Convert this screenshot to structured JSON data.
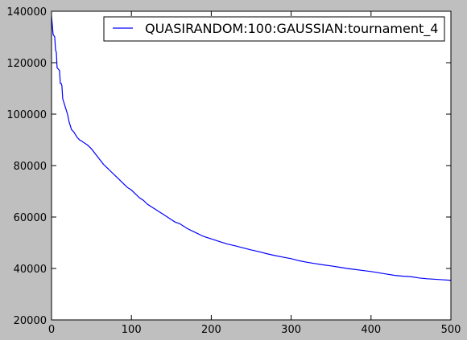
{
  "chart_data": {
    "type": "line",
    "title": "",
    "xlabel": "",
    "ylabel": "",
    "xlim": [
      0,
      500
    ],
    "ylim": [
      20000,
      140000
    ],
    "xticks": [
      0,
      100,
      200,
      300,
      400,
      500
    ],
    "yticks": [
      20000,
      40000,
      60000,
      80000,
      100000,
      120000,
      140000
    ],
    "grid": false,
    "legend_position": "top-right",
    "colors": {
      "figure_background": "#bfbfbf",
      "plot_background": "#ffffff",
      "series_line": "#0000ff"
    },
    "series": [
      {
        "name": "QUASIRANDOM:100:GAUSSIAN:tournament_4",
        "x": [
          0,
          2,
          4,
          5,
          6,
          7,
          10,
          11,
          12,
          13,
          14,
          15,
          16,
          17,
          20,
          22,
          25,
          28,
          30,
          32,
          35,
          38,
          40,
          45,
          50,
          55,
          60,
          65,
          70,
          75,
          80,
          85,
          90,
          95,
          100,
          105,
          110,
          115,
          120,
          125,
          130,
          135,
          140,
          145,
          150,
          155,
          160,
          170,
          180,
          190,
          200,
          210,
          220,
          230,
          240,
          250,
          260,
          270,
          280,
          290,
          300,
          310,
          320,
          330,
          340,
          350,
          360,
          370,
          380,
          390,
          400,
          410,
          420,
          430,
          440,
          450,
          460,
          470,
          480,
          490,
          500
        ],
        "y": [
          138000,
          131000,
          130000,
          125000,
          124000,
          118000,
          117000,
          112000,
          112000,
          111000,
          106000,
          105000,
          104000,
          103000,
          100000,
          97000,
          94000,
          93000,
          92000,
          91000,
          90000,
          89500,
          89000,
          88000,
          86500,
          84500,
          82500,
          80500,
          79000,
          77500,
          76000,
          74500,
          73000,
          71500,
          70500,
          69000,
          67500,
          66500,
          65000,
          64000,
          63000,
          62000,
          61000,
          60000,
          59000,
          58000,
          57500,
          55500,
          54000,
          52500,
          51500,
          50500,
          49500,
          48800,
          48000,
          47200,
          46500,
          45700,
          45000,
          44400,
          43800,
          43000,
          42400,
          41900,
          41400,
          41000,
          40500,
          40000,
          39600,
          39200,
          38800,
          38300,
          37800,
          37300,
          37000,
          36800,
          36300,
          36000,
          35800,
          35600,
          35400
        ]
      }
    ]
  }
}
